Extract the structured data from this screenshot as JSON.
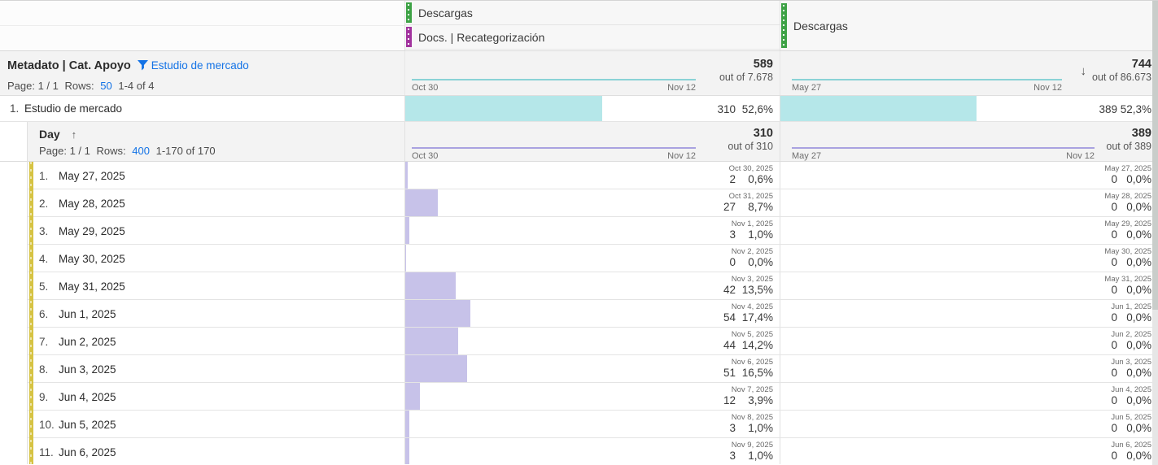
{
  "colors": {
    "accent_green": "#3da245",
    "accent_purple": "#a2339e",
    "accent_yellow": "#d6c343",
    "hl_green": "#35e018",
    "hl_yellow": "#f2de00",
    "bar_cyan": "#b5e7e9",
    "bar_lav": "#c7c2e9",
    "spark_cyan": "#8ad2d6",
    "spark_lav": "#a9a2e0",
    "link_blue": "#1473e6"
  },
  "column_headers": {
    "col1_top": {
      "label": "Descargas"
    },
    "col1_bottom": {
      "label": "Docs. | Recategorización"
    },
    "col2": {
      "label": "Descargas"
    }
  },
  "outer_table": {
    "title": "Metadato | Cat. Apoyo",
    "filter_label": "Estudio de mercado",
    "pagination": {
      "page": "Page: 1 / 1",
      "rows_label": "Rows:",
      "rows_value": "50",
      "range": "1-4 of 4"
    },
    "col1_summary": {
      "total": "589",
      "out_of": "out of 7.678",
      "range_start": "Oct 30",
      "range_end": "Nov 12"
    },
    "col2_summary": {
      "total": "744",
      "out_of": "out of 86.673",
      "range_start": "May 27",
      "range_end": "Nov 12",
      "sort_arrow": "↓"
    },
    "row": {
      "num": "1.",
      "label": "Estudio de mercado",
      "col1": {
        "value": "310",
        "pct": "52,6%",
        "bar_pct": 52.6
      },
      "col2": {
        "value": "389",
        "pct": "52,3%",
        "bar_pct": 52.3
      }
    }
  },
  "nested_table": {
    "title": "Day",
    "sort_arrow": "↑",
    "pagination": {
      "page": "Page: 1 / 1",
      "rows_label": "Rows:",
      "rows_value": "400",
      "range": "1-170 of 170"
    },
    "col1_summary": {
      "total": "310",
      "out_of": "out of 310",
      "range_start": "Oct 30",
      "range_end": "Nov 12"
    },
    "col2_summary": {
      "total": "389",
      "out_of": "out of 389",
      "range_start": "May 27",
      "range_end": "Nov 12"
    },
    "rows": [
      {
        "num": "1.",
        "day": "May 27, 2025",
        "day_highlight": "green",
        "col1": {
          "date": "Oct 30, 2025",
          "date_highlight": "yellow",
          "value": "2",
          "pct": "0,6%",
          "bar_pct": 0.6
        },
        "col2": {
          "date": "May 27, 2025",
          "date_highlight": "green",
          "value": "0",
          "pct": "0,0%",
          "bar_pct": 0
        }
      },
      {
        "num": "2.",
        "day": "May 28, 2025",
        "day_highlight": "green",
        "col1": {
          "date": "Oct 31, 2025",
          "date_highlight": "yellow",
          "value": "27",
          "pct": "8,7%",
          "bar_pct": 8.7
        },
        "col2": {
          "date": "May 28, 2025",
          "date_highlight": "green",
          "value": "0",
          "pct": "0,0%",
          "bar_pct": 0
        }
      },
      {
        "num": "3.",
        "day": "May 29, 2025",
        "day_highlight": "green",
        "col1": {
          "date": "Nov 1, 2025",
          "date_highlight": "yellow",
          "value": "3",
          "pct": "1,0%",
          "bar_pct": 1.0
        },
        "col2": {
          "date": "May 29, 2025",
          "date_highlight": "green",
          "value": "0",
          "pct": "0,0%",
          "bar_pct": 0
        }
      },
      {
        "num": "4.",
        "day": "May 30, 2025",
        "day_highlight": "green",
        "col1": {
          "date": "Nov 2, 2025",
          "date_highlight": "yellow",
          "value": "0",
          "pct": "0,0%",
          "bar_pct": 0
        },
        "col2": {
          "date": "May 30, 2025",
          "date_highlight": "green",
          "value": "0",
          "pct": "0,0%",
          "bar_pct": 0
        }
      },
      {
        "num": "5.",
        "day": "May 31, 2025",
        "day_highlight": "green",
        "col1": {
          "date": "Nov 3, 2025",
          "date_highlight": "yellow",
          "value": "42",
          "pct": "13,5%",
          "bar_pct": 13.5
        },
        "col2": {
          "date": "May 31, 2025",
          "date_highlight": "green",
          "value": "0",
          "pct": "0,0%",
          "bar_pct": 0
        }
      },
      {
        "num": "6.",
        "day": "Jun 1, 2025",
        "day_highlight": null,
        "col1": {
          "date": "Nov 4, 2025",
          "date_highlight": null,
          "value": "54",
          "pct": "17,4%",
          "bar_pct": 17.4
        },
        "col2": {
          "date": "Jun 1, 2025",
          "date_highlight": null,
          "value": "0",
          "pct": "0,0%",
          "bar_pct": 0
        }
      },
      {
        "num": "7.",
        "day": "Jun 2, 2025",
        "day_highlight": null,
        "col1": {
          "date": "Nov 5, 2025",
          "date_highlight": null,
          "value": "44",
          "pct": "14,2%",
          "bar_pct": 14.2
        },
        "col2": {
          "date": "Jun 2, 2025",
          "date_highlight": null,
          "value": "0",
          "pct": "0,0%",
          "bar_pct": 0
        }
      },
      {
        "num": "8.",
        "day": "Jun 3, 2025",
        "day_highlight": null,
        "col1": {
          "date": "Nov 6, 2025",
          "date_highlight": null,
          "value": "51",
          "pct": "16,5%",
          "bar_pct": 16.5
        },
        "col2": {
          "date": "Jun 3, 2025",
          "date_highlight": null,
          "value": "0",
          "pct": "0,0%",
          "bar_pct": 0
        }
      },
      {
        "num": "9.",
        "day": "Jun 4, 2025",
        "day_highlight": null,
        "col1": {
          "date": "Nov 7, 2025",
          "date_highlight": null,
          "value": "12",
          "pct": "3,9%",
          "bar_pct": 3.9
        },
        "col2": {
          "date": "Jun 4, 2025",
          "date_highlight": null,
          "value": "0",
          "pct": "0,0%",
          "bar_pct": 0
        }
      },
      {
        "num": "10.",
        "day": "Jun 5, 2025",
        "day_highlight": null,
        "col1": {
          "date": "Nov 8, 2025",
          "date_highlight": null,
          "value": "3",
          "pct": "1,0%",
          "bar_pct": 1.0
        },
        "col2": {
          "date": "Jun 5, 2025",
          "date_highlight": null,
          "value": "0",
          "pct": "0,0%",
          "bar_pct": 0
        }
      },
      {
        "num": "11.",
        "day": "Jun 6, 2025",
        "day_highlight": null,
        "col1": {
          "date": "Nov 9, 2025",
          "date_highlight": null,
          "value": "3",
          "pct": "1,0%",
          "bar_pct": 1.0
        },
        "col2": {
          "date": "Jun 6, 2025",
          "date_highlight": null,
          "value": "0",
          "pct": "0,0%",
          "bar_pct": 0
        }
      }
    ]
  }
}
